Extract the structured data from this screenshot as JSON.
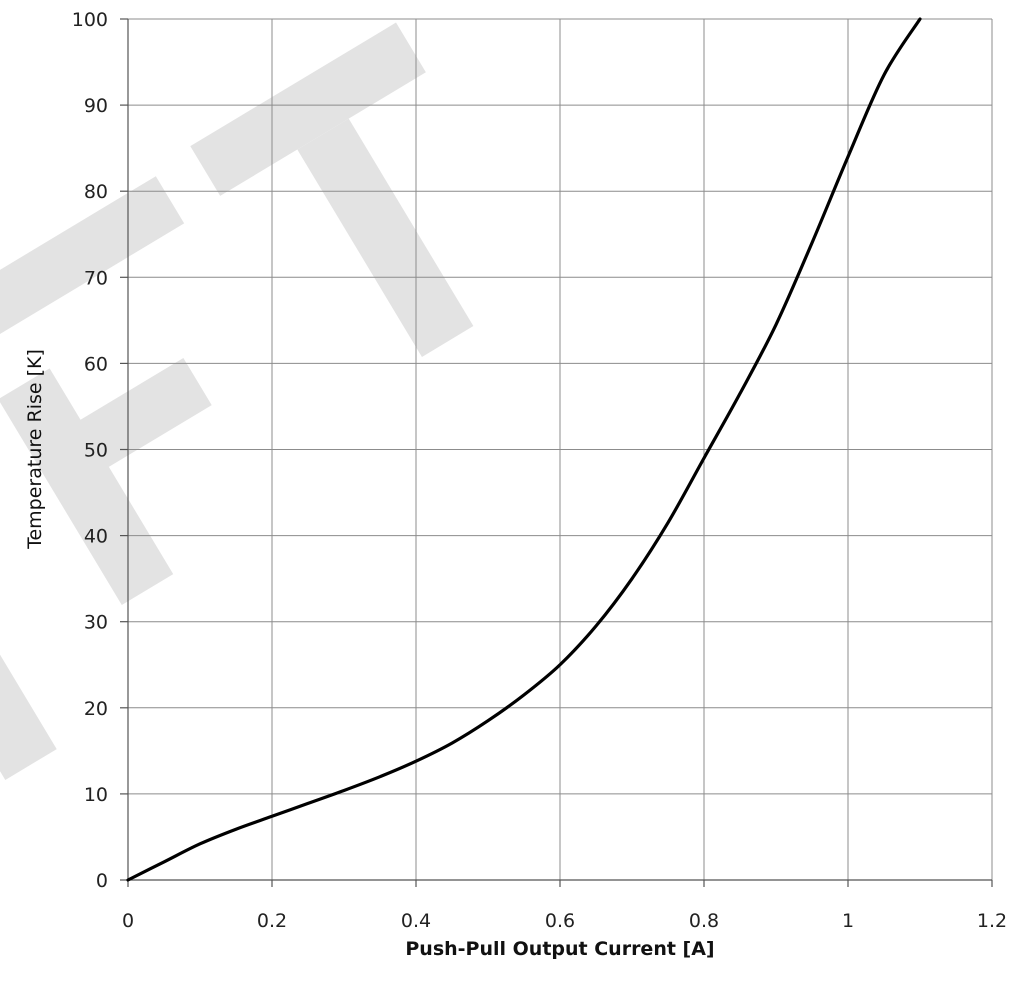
{
  "chart_data": {
    "type": "line",
    "title": "",
    "xlabel": "Push-Pull Output Current [A]",
    "ylabel": "Temperature Rise [K]",
    "xlim": [
      0,
      1.2
    ],
    "ylim": [
      0,
      100
    ],
    "x_ticks": [
      0,
      0.2,
      0.4,
      0.6,
      0.8,
      1,
      1.2
    ],
    "x_tick_labels": [
      "0",
      "0.2",
      "0.4",
      "0.6",
      "0.8",
      "1",
      "1.2"
    ],
    "y_ticks": [
      0,
      10,
      20,
      30,
      40,
      50,
      60,
      70,
      80,
      90,
      100
    ],
    "y_tick_labels": [
      "0",
      "10",
      "20",
      "30",
      "40",
      "50",
      "60",
      "70",
      "80",
      "90",
      "100"
    ],
    "grid": true,
    "watermark": "DRAFT",
    "watermark_color": "#e3e3e3",
    "line_color": "#000000",
    "grid_color": "#8c8c8c",
    "series": [
      {
        "x": [
          0,
          0.05,
          0.1,
          0.15,
          0.2,
          0.25,
          0.3,
          0.35,
          0.4,
          0.45,
          0.5,
          0.55,
          0.6,
          0.65,
          0.7,
          0.75,
          0.8,
          0.85,
          0.9,
          0.95,
          1.0,
          1.05,
          1.1
        ],
        "y": [
          0,
          2.1,
          4.2,
          5.9,
          7.4,
          8.9,
          10.4,
          12.0,
          13.8,
          15.9,
          18.5,
          21.5,
          25.0,
          29.5,
          35.0,
          41.5,
          49.0,
          56.5,
          64.5,
          74.0,
          84.0,
          93.5,
          100
        ]
      }
    ]
  }
}
